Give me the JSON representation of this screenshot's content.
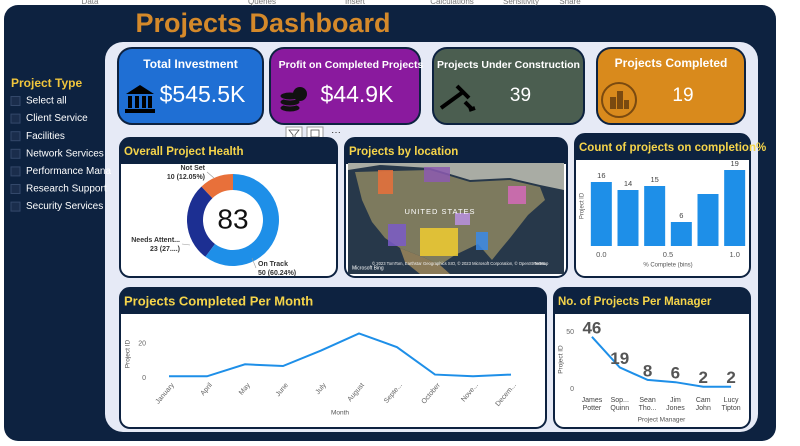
{
  "ribbon": [
    "Data",
    "Queries",
    "Insert",
    "Calculations",
    "Sensitivity",
    "Share"
  ],
  "header": {
    "title": "Projects Dashboard"
  },
  "slicer": {
    "title": "Project Type",
    "items": [
      "Select all",
      "Client Service",
      "Facilities",
      "Network Services",
      "Performance Mana",
      "Research Support",
      "Security Services"
    ]
  },
  "kpis": [
    {
      "label": "Total Investment",
      "value": "$545.5K",
      "color": "#1f6fd4"
    },
    {
      "label": "Profit on Completed Projects",
      "value": "$44.9K",
      "color": "#8a1a9e"
    },
    {
      "label": "Projects Under Construction",
      "value": 39,
      "color": "#4b5e50"
    },
    {
      "label": "Projects Completed",
      "value": 19,
      "color": "#d98a1c"
    }
  ],
  "chart_data": [
    {
      "type": "donut",
      "title": "Overall Project Health",
      "categories": [
        "Not Set",
        "Needs Attent...",
        "On Track"
      ],
      "values": [
        10,
        23,
        50
      ],
      "value_labels": [
        "10 (12.05%)",
        "23 (27....)",
        "50 (60.24%)"
      ],
      "colors": [
        "#e8703a",
        "#1c2f92",
        "#1e8fe8"
      ],
      "total": 83
    },
    {
      "type": "map",
      "title": "Projects by location",
      "labels": [
        "UNITED STATES"
      ],
      "attribution": "© 2023 TomTom, Earthstar Geographics SIO, © 2023 Microsoft Corporation, © OpenStreetMap",
      "terms": "Terms",
      "brand": "Microsoft Bing"
    },
    {
      "type": "bar",
      "title": "Count of projects on completion%",
      "x": [
        0,
        0.2,
        0.4,
        0.6,
        0.8,
        1.0
      ],
      "values": [
        16,
        14,
        15,
        6,
        13,
        19
      ],
      "value_labels": [
        "16",
        "14",
        "15",
        "6",
        null,
        "19"
      ],
      "xlim": [
        -0.1,
        1.1
      ],
      "xticks": [
        {
          "value": 0,
          "label": "0.0"
        },
        {
          "value": 0.5,
          "label": "0.5"
        },
        {
          "value": 1,
          "label": "1.0"
        }
      ],
      "ylim": [
        0,
        20
      ],
      "x_label": "% Complete (bins)",
      "y_label": "Project ID",
      "color": "#1e8fe8"
    },
    {
      "type": "line",
      "title": "Projects Completed Per Month",
      "categories": [
        "January",
        "April",
        "May",
        "June",
        "July",
        "August",
        "Septe...",
        "October",
        "Nove...",
        "Decem..."
      ],
      "values": [
        1,
        1,
        8,
        7,
        16,
        26,
        18,
        2,
        1,
        2
      ],
      "ylim": [
        0,
        28
      ],
      "yticks": [
        0,
        20
      ],
      "x_label": "Month",
      "y_label": "Project ID",
      "color": "#1e8fe8",
      "data_labels": false,
      "rotate_labels": true
    },
    {
      "type": "line",
      "title": "No. of Projects Per Manager",
      "categories": [
        "James Potter",
        "Sop... Quinn",
        "Sean Tho...",
        "Jim Jones",
        "Cam John",
        "Lucy Tipton"
      ],
      "values": [
        46,
        19,
        8,
        6,
        2,
        2
      ],
      "ylim": [
        0,
        52
      ],
      "yticks": [
        0,
        50
      ],
      "x_label": "Project Manager",
      "y_label": "Project ID",
      "color": "#1e8fe8",
      "data_labels": true,
      "rotate_labels": false
    }
  ]
}
